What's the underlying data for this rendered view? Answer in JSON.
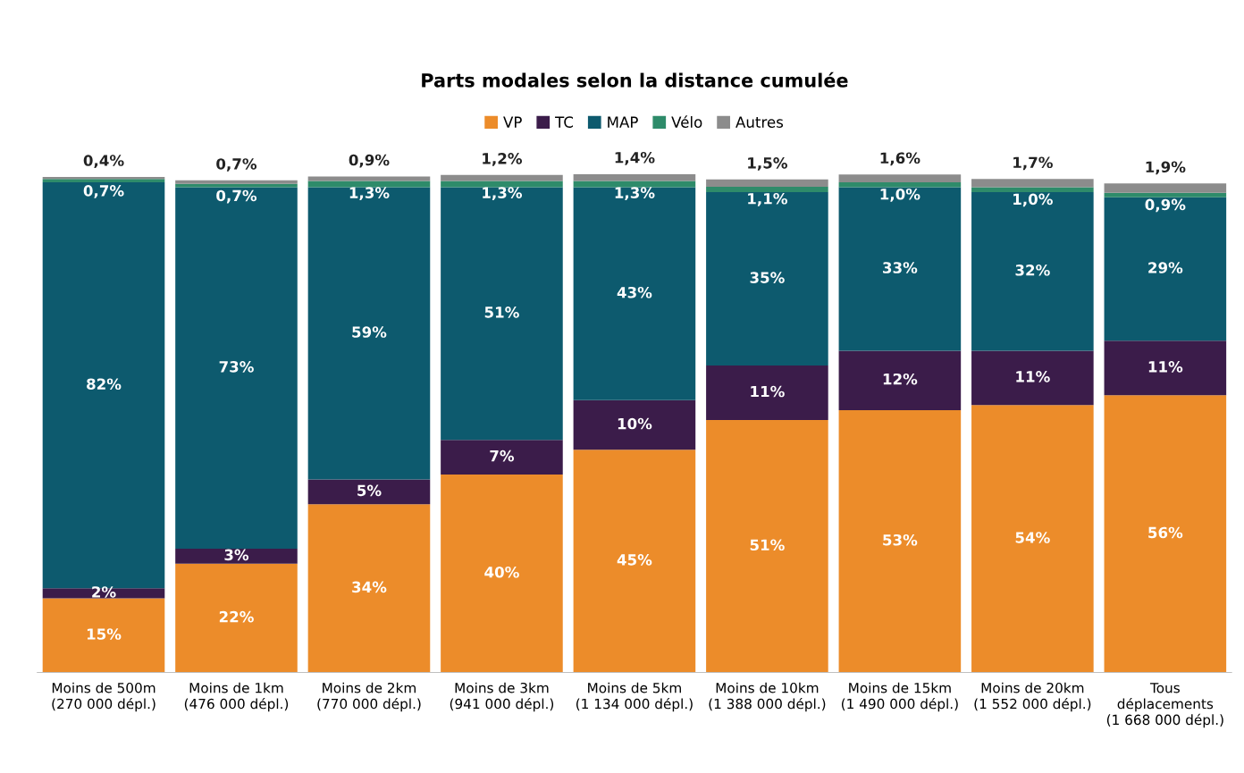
{
  "chart_data": {
    "type": "bar",
    "stacked": true,
    "title": "Parts modales selon la distance cumulée",
    "categories": [
      "Moins de 500m\n(270 000 dépl.)",
      "Moins de 1km\n(476 000 dépl.)",
      "Moins de 2km\n(770 000 dépl.)",
      "Moins de 3km\n(941 000 dépl.)",
      "Moins de 5km\n(1 134 000 dépl.)",
      "Moins de 10km\n(1 388 000 dépl.)",
      "Moins de 15km\n(1 490 000 dépl.)",
      "Moins de 20km\n(1 552 000 dépl.)",
      "Tous\ndéplacements\n(1 668 000 dépl.)"
    ],
    "series": [
      {
        "name": "VP",
        "color": "#ec8c2a",
        "values": [
          15,
          22,
          34,
          40,
          45,
          51,
          53,
          54,
          56
        ],
        "value_labels": [
          "15%",
          "22%",
          "34%",
          "40%",
          "45%",
          "51%",
          "53%",
          "54%",
          "56%"
        ]
      },
      {
        "name": "TC",
        "color": "#3b1c4a",
        "values": [
          2,
          3,
          5,
          7,
          10,
          11,
          12,
          11,
          11
        ],
        "value_labels": [
          "2%",
          "3%",
          "5%",
          "7%",
          "10%",
          "11%",
          "12%",
          "11%",
          "11%"
        ]
      },
      {
        "name": "MAP",
        "color": "#0d5a6e",
        "values": [
          82,
          73,
          59,
          51,
          43,
          35,
          33,
          32,
          29
        ],
        "value_labels": [
          "82%",
          "73%",
          "59%",
          "51%",
          "43%",
          "35%",
          "33%",
          "32%",
          "29%"
        ]
      },
      {
        "name": "Vélo",
        "color": "#2e8b6a",
        "values": [
          0.7,
          0.7,
          1.3,
          1.3,
          1.3,
          1.1,
          1.0,
          1.0,
          0.9
        ],
        "value_labels": [
          "0,7%",
          "0,7%",
          "1,3%",
          "1,3%",
          "1,3%",
          "1,1%",
          "1,0%",
          "1,0%",
          "0,9%"
        ]
      },
      {
        "name": "Autres",
        "color": "#8c8c8c",
        "values": [
          0.4,
          0.7,
          0.9,
          1.2,
          1.4,
          1.5,
          1.6,
          1.7,
          1.9
        ],
        "value_labels": [
          "0,4%",
          "0,7%",
          "0,9%",
          "1,2%",
          "1,4%",
          "1,5%",
          "1,6%",
          "1,7%",
          "1,9%"
        ]
      }
    ],
    "legend": "top",
    "grid": false,
    "tick_labels": "x"
  }
}
